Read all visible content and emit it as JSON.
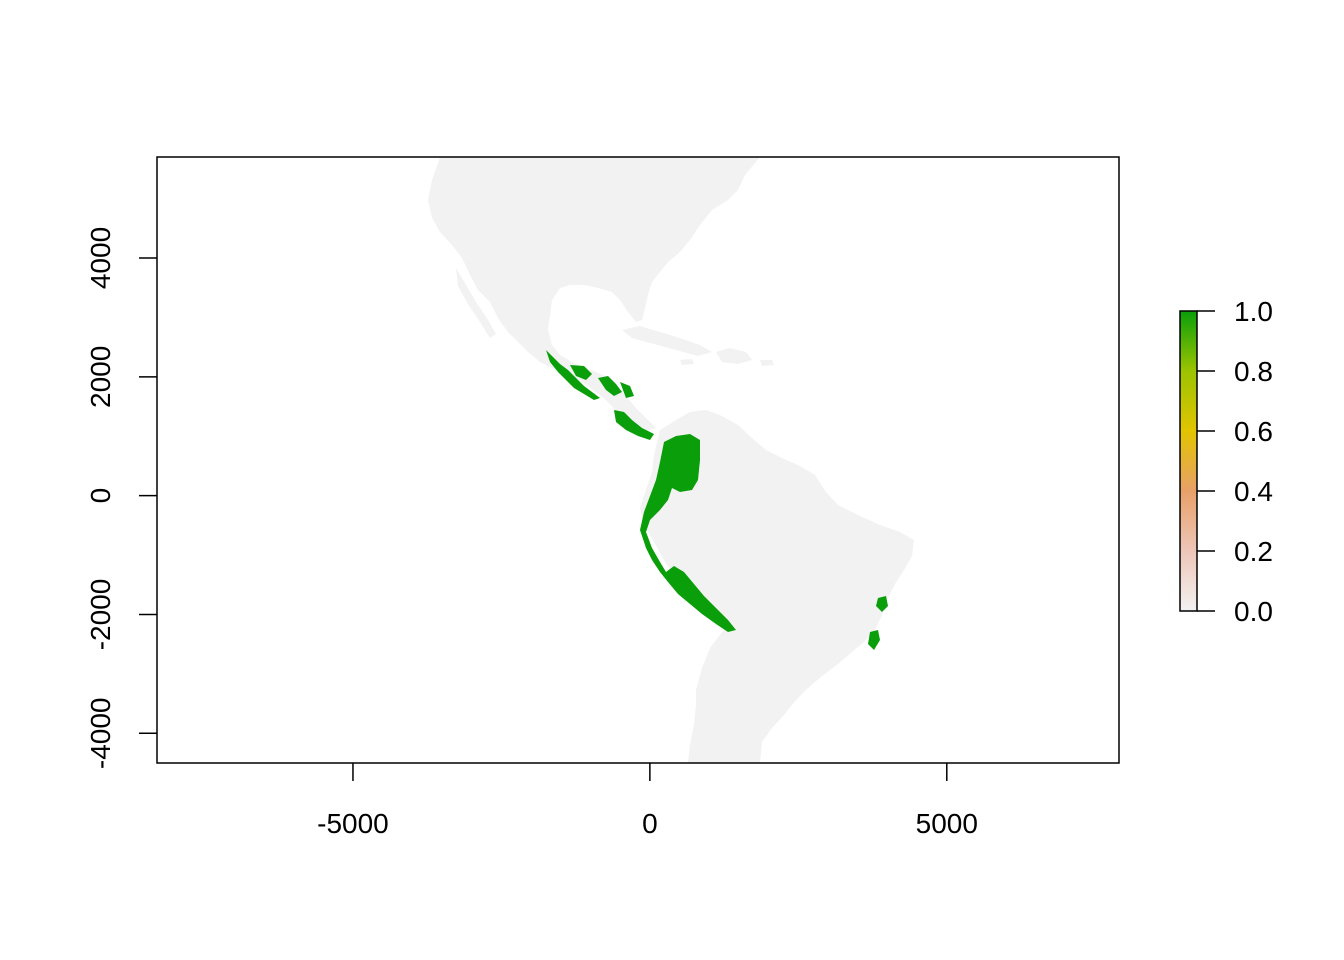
{
  "map": {
    "x_axis": {
      "range": [
        -8300,
        7900
      ],
      "ticks": [
        -5000,
        0,
        5000
      ],
      "tick_labels": [
        "-5000",
        "0",
        "5000"
      ]
    },
    "y_axis": {
      "range": [
        -4500,
        5700
      ],
      "ticks": [
        -4000,
        -2000,
        0,
        2000,
        4000
      ],
      "tick_labels": [
        "-4000",
        "-2000",
        "0",
        "2000",
        "4000"
      ]
    },
    "colors": {
      "land": "#f2f2f2",
      "presence": "#0a9e0a",
      "frame": "#000000",
      "background": "#ffffff"
    },
    "legend": {
      "type": "continuous-colorbar",
      "placement": "right",
      "ticks": [
        0.0,
        0.2,
        0.4,
        0.6,
        0.8,
        1.0
      ],
      "tick_labels": [
        "0.0",
        "0.2",
        "0.4",
        "0.6",
        "0.8",
        "1.0"
      ],
      "gradient": [
        "#f2f2f2",
        "#eec6b8",
        "#e8a068",
        "#e2c400",
        "#9cc300",
        "#0a9e0a"
      ]
    }
  }
}
